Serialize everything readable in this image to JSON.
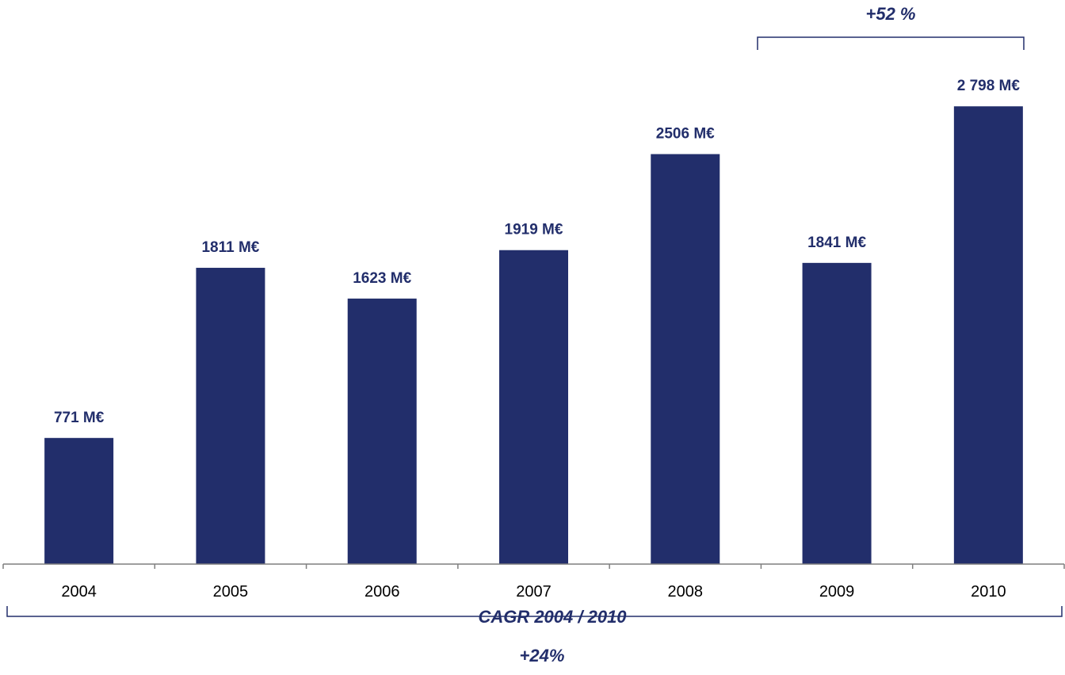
{
  "chart_data": {
    "type": "bar",
    "categories": [
      "2004",
      "2005",
      "2006",
      "2007",
      "2008",
      "2009",
      "2010"
    ],
    "values": [
      771,
      1811,
      1623,
      1919,
      2506,
      1841,
      2798
    ],
    "data_labels": [
      "771 M€",
      "1811 M€",
      "1623 M€",
      "1919 M€",
      "2506 M€",
      "1841 M€",
      "2 798 M€"
    ],
    "unit": "M€",
    "ylim": [
      0,
      3000
    ],
    "grid": false,
    "bar_color": "#222e6b",
    "annotations": {
      "growth_2009_2010": "+52 %",
      "cagr_label": "CAGR 2004 / 2010",
      "cagr_value": "+24%"
    }
  }
}
